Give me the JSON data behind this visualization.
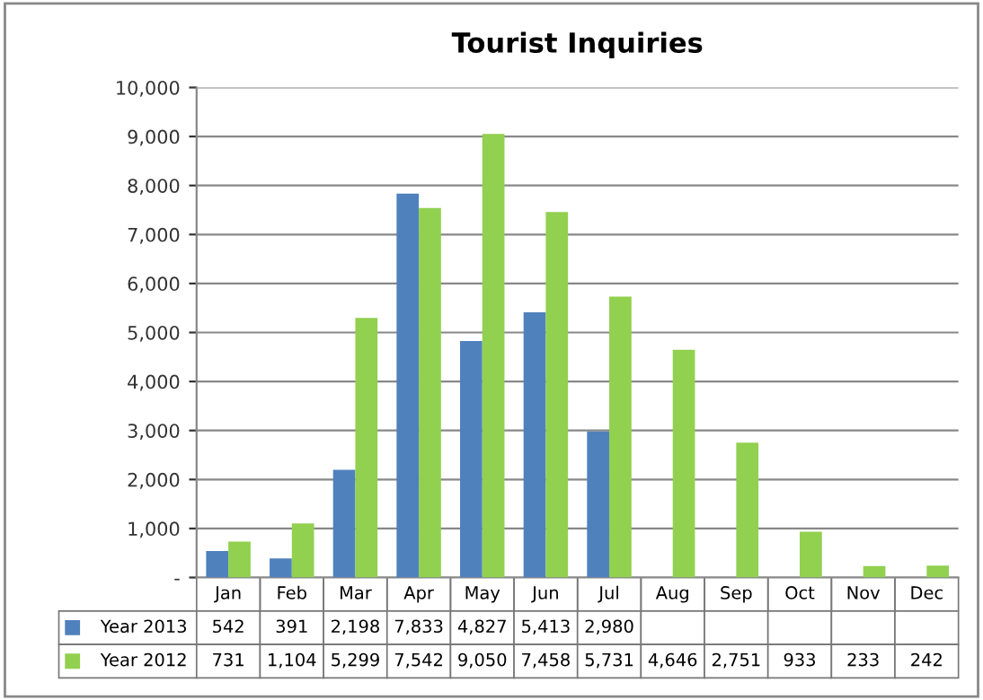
{
  "chart_data": {
    "type": "bar",
    "title": "Tourist Inquiries",
    "categories": [
      "Jan",
      "Feb",
      "Mar",
      "Apr",
      "May",
      "Jun",
      "Jul",
      "Aug",
      "Sep",
      "Oct",
      "Nov",
      "Dec"
    ],
    "series": [
      {
        "name": "Year 2013",
        "color": "#4f81bd",
        "values": [
          542,
          391,
          2198,
          7833,
          4827,
          5413,
          2980,
          null,
          null,
          null,
          null,
          null
        ],
        "value_labels": [
          "542",
          "391",
          "2,198",
          "7,833",
          "4,827",
          "5,413",
          "2,980",
          null,
          null,
          null,
          null,
          null
        ]
      },
      {
        "name": "Year 2012",
        "color": "#92d050",
        "values": [
          731,
          1104,
          5299,
          7542,
          9050,
          7458,
          5731,
          4646,
          2751,
          933,
          233,
          242
        ],
        "value_labels": [
          "731",
          "1,104",
          "5,299",
          "7,542",
          "9,050",
          "7,458",
          "5,731",
          "4,646",
          "2,751",
          "933",
          "233",
          "242"
        ]
      }
    ],
    "ylim": [
      0,
      10000
    ],
    "yticks": [
      {
        "value": 0,
        "label": "-"
      },
      {
        "value": 1000,
        "label": "1,000"
      },
      {
        "value": 2000,
        "label": "2,000"
      },
      {
        "value": 3000,
        "label": "3,000"
      },
      {
        "value": 4000,
        "label": "4,000"
      },
      {
        "value": 5000,
        "label": "5,000"
      },
      {
        "value": 6000,
        "label": "6,000"
      },
      {
        "value": 7000,
        "label": "7,000"
      },
      {
        "value": 8000,
        "label": "8,000"
      },
      {
        "value": 9000,
        "label": "9,000"
      },
      {
        "value": 10000,
        "label": "10,000"
      }
    ],
    "grid": "y",
    "legend": "bottom"
  }
}
